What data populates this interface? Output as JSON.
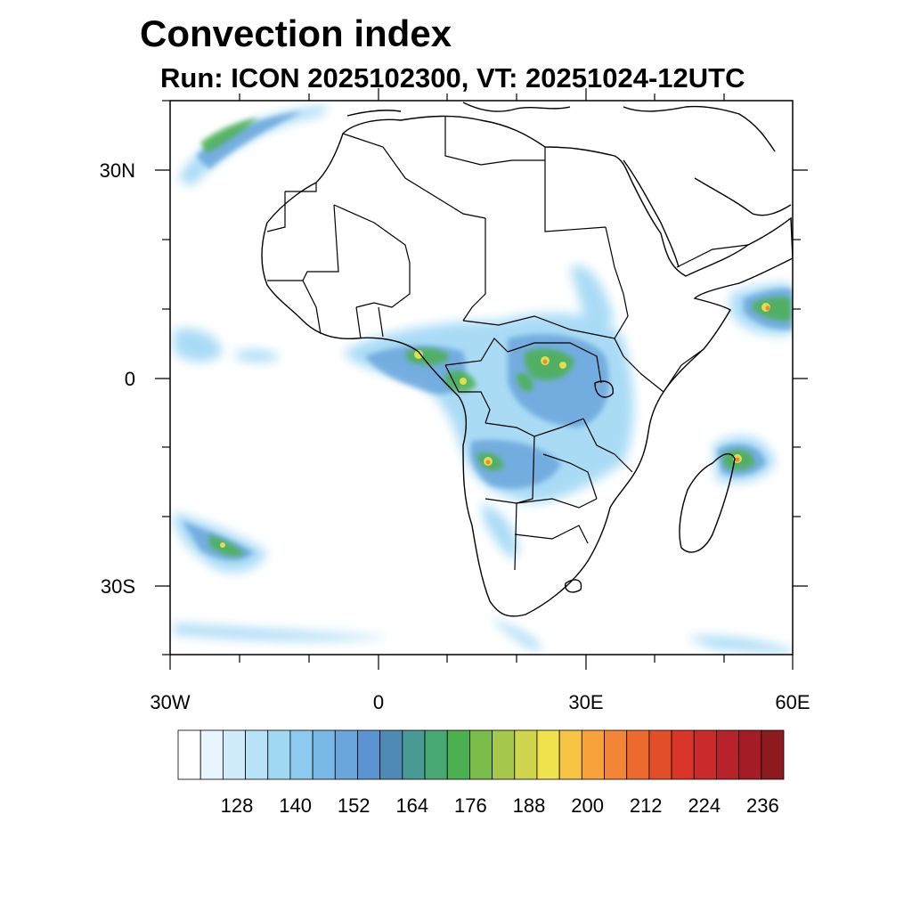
{
  "title": "Convection index",
  "subtitle": "Run: ICON 2025102300,  VT: 20251024-12UTC",
  "map": {
    "lon_range": [
      -30,
      60
    ],
    "lat_range": [
      -40,
      40
    ],
    "lat_labels": [
      "30N",
      "0",
      "30S"
    ],
    "lon_labels": [
      "30W",
      "0",
      "30E",
      "60E"
    ]
  },
  "colorbar": {
    "labels": [
      "128",
      "140",
      "152",
      "164",
      "176",
      "188",
      "200",
      "212",
      "224",
      "236"
    ],
    "colors": [
      "#ffffff",
      "#e8f5fc",
      "#d0ebf9",
      "#b8e2f7",
      "#a0d8f4",
      "#8ccbef",
      "#78b8e6",
      "#6aa6dc",
      "#5b94d1",
      "#4f8ab5",
      "#4a9a96",
      "#47a873",
      "#4bb04f",
      "#7bbb49",
      "#a6c84a",
      "#cfd54c",
      "#f0e24c",
      "#f7c443",
      "#f7a23b",
      "#f28634",
      "#ec6a2e",
      "#e24f2a",
      "#d93629",
      "#c92a2b",
      "#b7222b",
      "#a51c26",
      "#8c1a1f"
    ]
  }
}
